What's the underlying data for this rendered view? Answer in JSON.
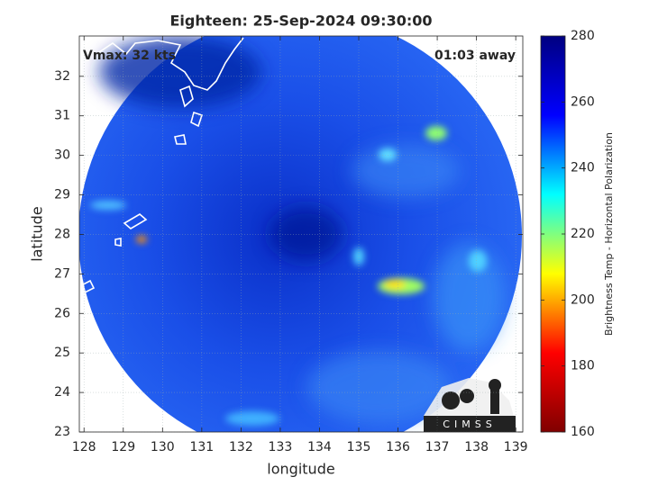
{
  "chart_data": {
    "type": "image",
    "title": "Eighteen: 25-Sep-2024 09:30:00",
    "annotations": [
      "Vmax: 32 kts",
      "01:03 away"
    ],
    "x_label": "longitude",
    "y_label": "latitude",
    "xlim": [
      127.88,
      139.18
    ],
    "ylim": [
      23,
      33.02
    ],
    "xticks": [
      128,
      129,
      130,
      131,
      132,
      133,
      134,
      135,
      136,
      137,
      138,
      139
    ],
    "yticks": [
      23,
      24,
      25,
      26,
      27,
      28,
      29,
      30,
      31,
      32
    ],
    "grid": true,
    "colorbar": {
      "label": "Brightness Temp - Horizontal Polarization",
      "clim": [
        160,
        280
      ],
      "ticks": [
        160,
        180,
        200,
        220,
        240,
        260,
        280
      ],
      "colormap": [
        "#800000",
        "#ff0000",
        "#ffff00",
        "#00ffff",
        "#0000ff",
        "#000080"
      ]
    }
  },
  "logo": {
    "text": "CIMSS"
  }
}
